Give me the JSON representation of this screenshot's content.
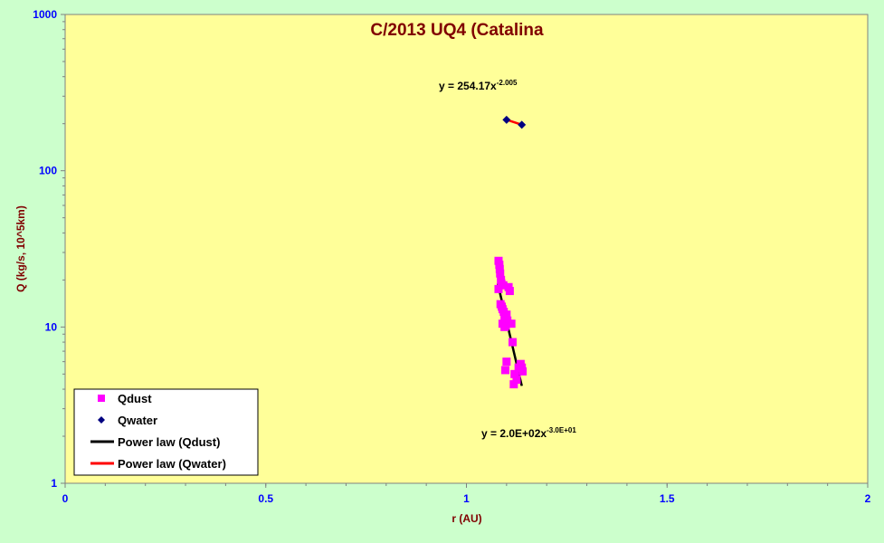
{
  "chart_data": {
    "type": "scatter",
    "title": "C/2013 UQ4 (Catalina",
    "xlabel": "r (AU)",
    "ylabel": "Q (kg/s, 10^5km)",
    "xlim": [
      0,
      2
    ],
    "ylim": [
      1,
      1000
    ],
    "yscale": "log",
    "x_ticks": [
      "0",
      "0.5",
      "1",
      "1.5",
      "2"
    ],
    "y_ticks": [
      "1",
      "10",
      "100",
      "1000"
    ],
    "grid": false,
    "legend_position": "bottom-left",
    "colors": {
      "plot_bg": "#ffff99",
      "page_bg": "#ccffcc",
      "qdust": "#ff00ff",
      "qwater": "#000080",
      "fit_dust": "#000000",
      "fit_water": "#ff0000",
      "tick_text": "#0000ff",
      "title_text": "#800000"
    },
    "series": [
      {
        "name": "Qdust",
        "marker": "square",
        "points": [
          [
            1.08,
            26.5
          ],
          [
            1.082,
            25.0
          ],
          [
            1.083,
            23.5
          ],
          [
            1.084,
            22.0
          ],
          [
            1.086,
            20.0
          ],
          [
            1.087,
            19.0
          ],
          [
            1.092,
            18.5
          ],
          [
            1.08,
            17.5
          ],
          [
            1.105,
            18.0
          ],
          [
            1.108,
            17.0
          ],
          [
            1.085,
            14.0
          ],
          [
            1.088,
            13.5
          ],
          [
            1.09,
            13.0
          ],
          [
            1.093,
            12.5
          ],
          [
            1.1,
            12.0
          ],
          [
            1.095,
            11.5
          ],
          [
            1.102,
            11.0
          ],
          [
            1.09,
            10.5
          ],
          [
            1.098,
            10.2
          ],
          [
            1.112,
            10.5
          ],
          [
            1.095,
            10.0
          ],
          [
            1.115,
            8.0
          ],
          [
            1.1,
            6.0
          ],
          [
            1.097,
            5.3
          ],
          [
            1.13,
            5.5
          ],
          [
            1.135,
            5.8
          ],
          [
            1.12,
            5.0
          ],
          [
            1.14,
            5.2
          ],
          [
            1.138,
            5.5
          ],
          [
            1.125,
            4.6
          ],
          [
            1.118,
            4.3
          ]
        ]
      },
      {
        "name": "Qwater",
        "marker": "diamond",
        "points": [
          [
            1.1,
            212
          ],
          [
            1.138,
            197
          ]
        ]
      }
    ],
    "fits": [
      {
        "name": "Power law (Qdust)",
        "x_range": [
          1.078,
          1.138
        ],
        "y_range": [
          19.0,
          4.2
        ]
      },
      {
        "name": "Power law (Qwater)",
        "x_range": [
          1.1,
          1.138
        ],
        "y_range": [
          212,
          197
        ]
      }
    ],
    "annotations": {
      "water_eq_base": "y = 254.17x",
      "water_eq_exp": "-2.005",
      "dust_eq_base": "y = 2.0E+02x",
      "dust_eq_exp": "-3.0E+01"
    }
  }
}
